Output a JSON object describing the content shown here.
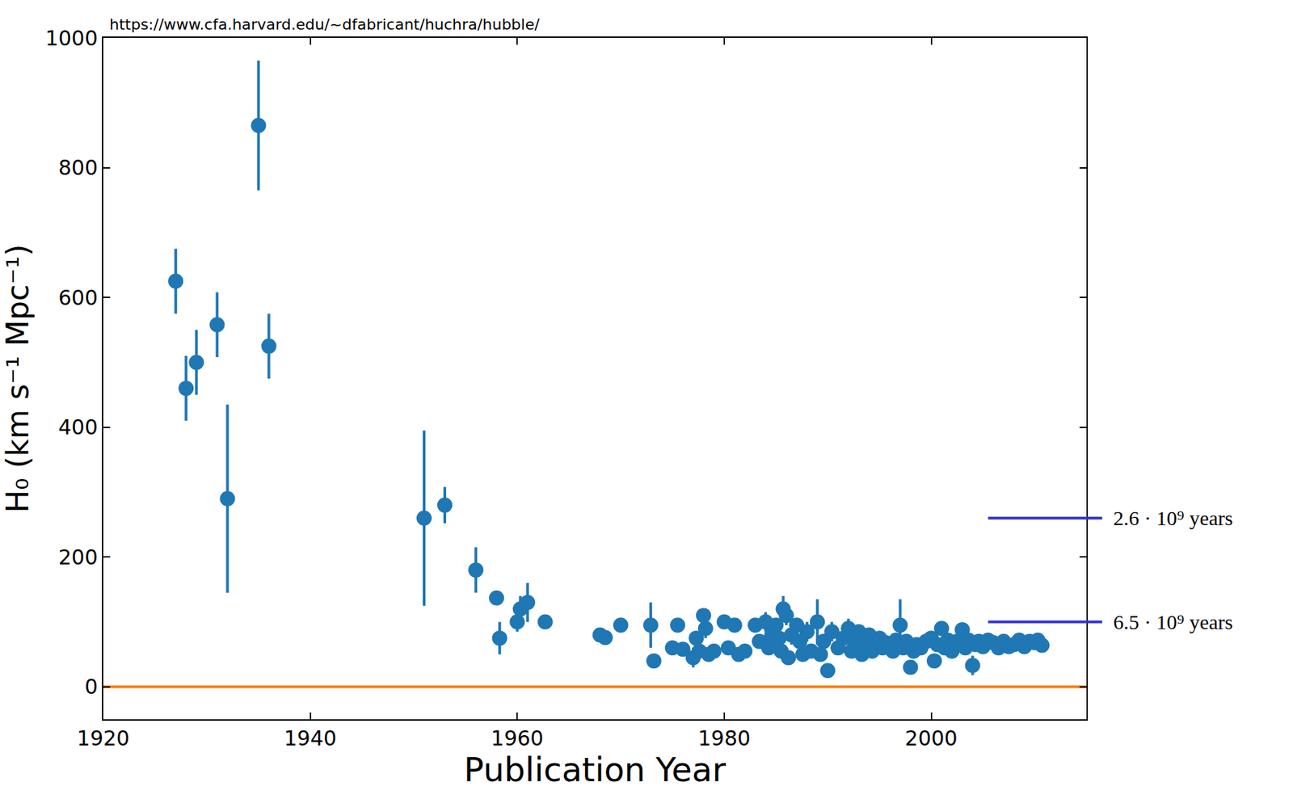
{
  "chart_data": {
    "type": "scatter",
    "annotation": "https://www.cfa.harvard.edu/~dfabricant/huchra/hubble/",
    "x_label": "Publication Year",
    "y_label": "H₀ (km s⁻¹ Mpc⁻¹)",
    "color": "#1f77b4",
    "marker": "circle",
    "x": [
      1927,
      1928,
      1929,
      1931,
      1932,
      1935,
      1936,
      1951,
      1953,
      1956,
      1958,
      1958.3,
      1960,
      1960.3,
      1961,
      1962.7,
      1968,
      1968.5,
      1970,
      1972.9,
      1973.2,
      1975,
      1975.5,
      1976,
      1977,
      1977.3,
      1977.6,
      1978,
      1978.2,
      1978.5,
      1979,
      1980,
      1980.4,
      1981,
      1981.4,
      1982,
      1983,
      1983.4,
      1984,
      1984.3,
      1984.6,
      1985,
      1985.3,
      1985.5,
      1985.7,
      1986,
      1986.2,
      1986.5,
      1987,
      1987.3,
      1987.6,
      1988,
      1988.4,
      1989,
      1989.3,
      1989.6,
      1990,
      1990.4,
      1991,
      1991.5,
      1992,
      1992.3,
      1992.6,
      1993,
      1993.3,
      1993.6,
      1994,
      1994.3,
      1994.6,
      1995,
      1995.3,
      1995.6,
      1996,
      1996.3,
      1996.6,
      1997,
      1997.3,
      1997.6,
      1998,
      1998.3,
      1998.6,
      1999,
      1999.5,
      2000,
      2000.3,
      2000.6,
      2001,
      2001.3,
      2001.6,
      2002,
      2002.5,
      2003,
      2003.3,
      2003.6,
      2004,
      2004.3,
      2004.6,
      2005,
      2005.5,
      2006,
      2006.5,
      2007,
      2007.5,
      2008,
      2008.5,
      2009,
      2009.5,
      2010,
      2010.3,
      2010.7
    ],
    "values": [
      625,
      460,
      500,
      558,
      290,
      865,
      525,
      260,
      280,
      180,
      137,
      75,
      100,
      120,
      130,
      100,
      80,
      76,
      95,
      95,
      40,
      60,
      95,
      58,
      45,
      75,
      55,
      110,
      90,
      50,
      55,
      100,
      60,
      95,
      50,
      55,
      95,
      70,
      100,
      60,
      80,
      95,
      75,
      55,
      120,
      110,
      45,
      80,
      95,
      70,
      50,
      85,
      55,
      100,
      50,
      70,
      25,
      85,
      60,
      75,
      90,
      55,
      70,
      85,
      50,
      65,
      80,
      55,
      70,
      75,
      60,
      68,
      65,
      55,
      72,
      95,
      60,
      70,
      30,
      55,
      65,
      60,
      70,
      75,
      40,
      65,
      90,
      60,
      72,
      55,
      70,
      88,
      60,
      72,
      33,
      65,
      70,
      62,
      72,
      68,
      60,
      70,
      62,
      65,
      72,
      62,
      70,
      68,
      72,
      64
    ],
    "errors": [
      50,
      50,
      50,
      50,
      145,
      100,
      50,
      135,
      28,
      35,
      10,
      25,
      15,
      20,
      30,
      10,
      8,
      8,
      10,
      35,
      10,
      10,
      10,
      8,
      15,
      10,
      10,
      10,
      15,
      10,
      8,
      10,
      10,
      10,
      8,
      8,
      10,
      10,
      15,
      10,
      10,
      10,
      10,
      10,
      20,
      15,
      10,
      15,
      10,
      10,
      10,
      15,
      10,
      35,
      10,
      10,
      10,
      15,
      10,
      10,
      15,
      10,
      10,
      10,
      10,
      10,
      10,
      8,
      8,
      10,
      8,
      8,
      8,
      8,
      8,
      40,
      10,
      8,
      10,
      8,
      8,
      8,
      8,
      10,
      10,
      8,
      10,
      8,
      8,
      8,
      8,
      10,
      8,
      8,
      15,
      8,
      8,
      6,
      6,
      6,
      6,
      6,
      6,
      6,
      6,
      6,
      6,
      6,
      6,
      6
    ],
    "xlim": [
      1920,
      2015
    ],
    "ylim": [
      -50,
      1000
    ],
    "xticks": [
      1920,
      1940,
      1960,
      1980,
      2000
    ],
    "yticks": [
      0,
      200,
      400,
      600,
      800,
      1000
    ],
    "grid": false,
    "reference_lines": [
      {
        "value": 0,
        "color": "#ff7f0e"
      },
      {
        "value": 260,
        "label": "2.6 · 10⁹ years",
        "color": "#3333cc"
      },
      {
        "value": 100,
        "label": "6.5 · 10⁹ years",
        "color": "#3333cc"
      }
    ]
  }
}
